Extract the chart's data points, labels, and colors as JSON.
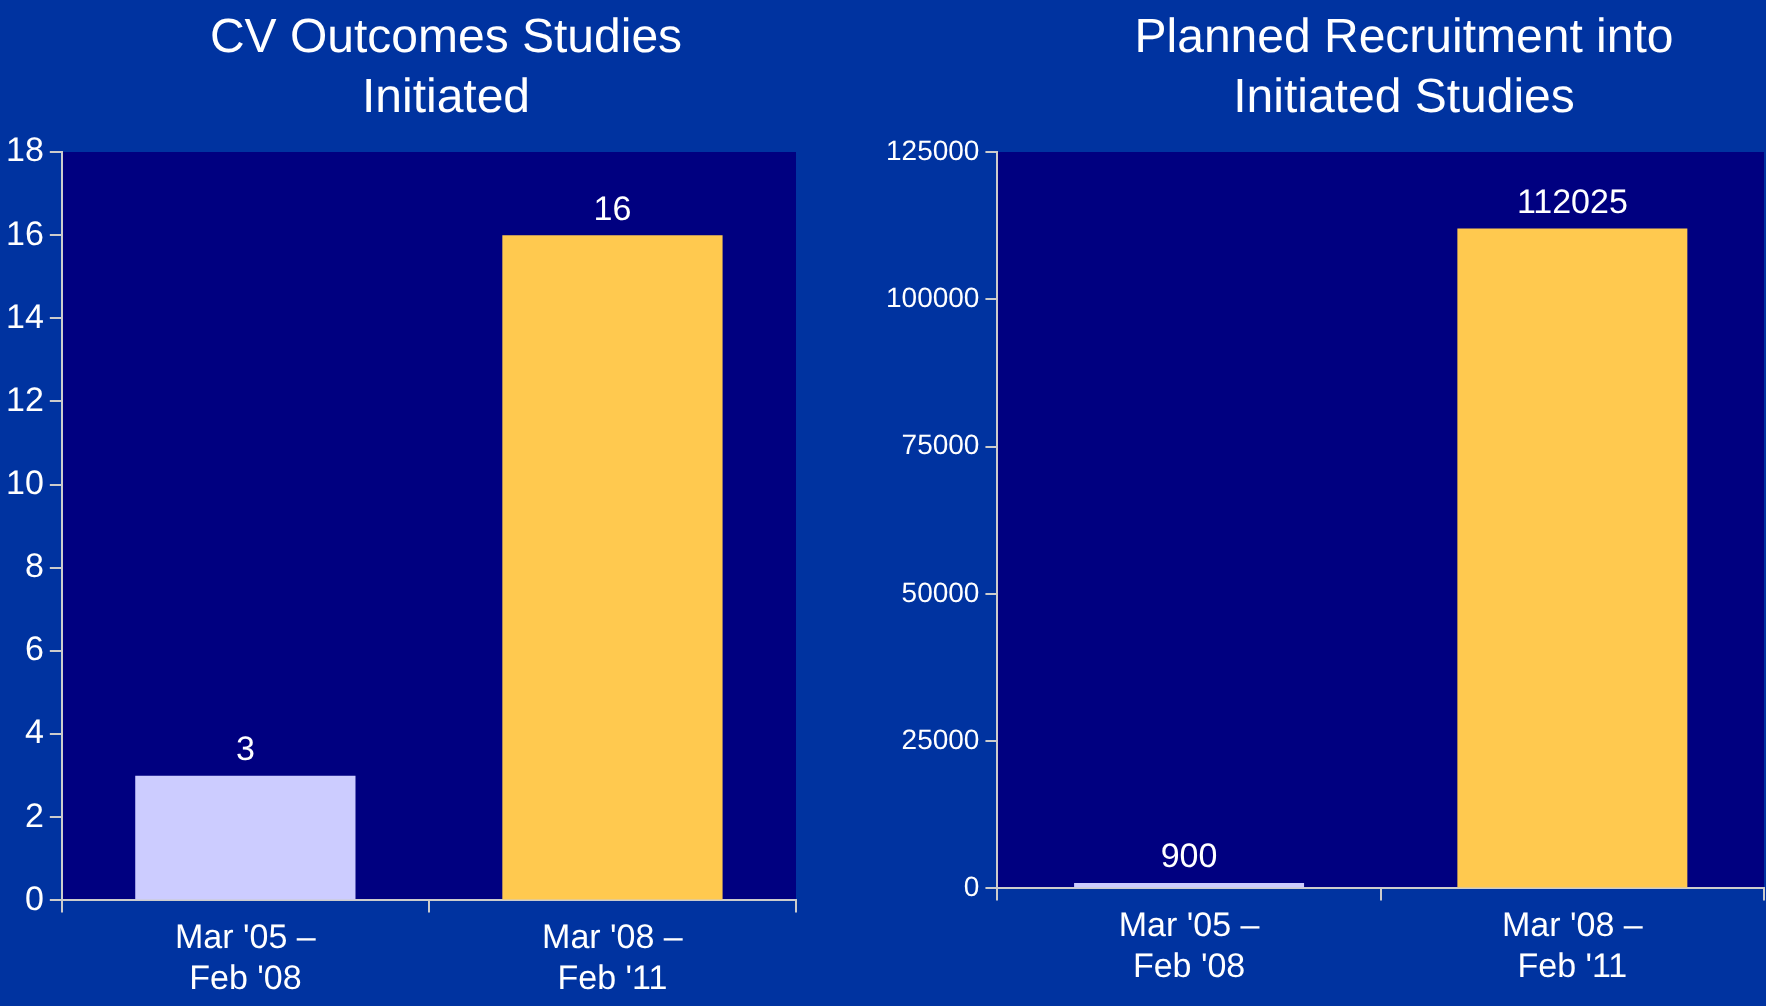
{
  "chart_data": [
    {
      "type": "bar",
      "title": "CV Outcomes Studies Initiated",
      "categories": [
        "Mar '05 – Feb '08",
        "Mar '08 – Feb '11"
      ],
      "values": [
        3,
        16
      ],
      "colors": [
        "#ccccff",
        "#ffc94f"
      ],
      "ylim": [
        0,
        18
      ],
      "yticks": [
        0,
        2,
        4,
        6,
        8,
        10,
        12,
        14,
        16,
        18
      ],
      "data_labels": true,
      "grid": false,
      "legend": false
    },
    {
      "type": "bar",
      "title": "Planned Recruitment into Initiated Studies",
      "categories": [
        "Mar '05 – Feb '08",
        "Mar '08 – Feb '11"
      ],
      "values": [
        900,
        112025
      ],
      "colors": [
        "#ccccff",
        "#ffc94f"
      ],
      "ylim": [
        0,
        125000
      ],
      "yticks": [
        0,
        25000,
        50000,
        75000,
        100000,
        125000
      ],
      "data_labels": true,
      "grid": false,
      "legend": false
    }
  ]
}
